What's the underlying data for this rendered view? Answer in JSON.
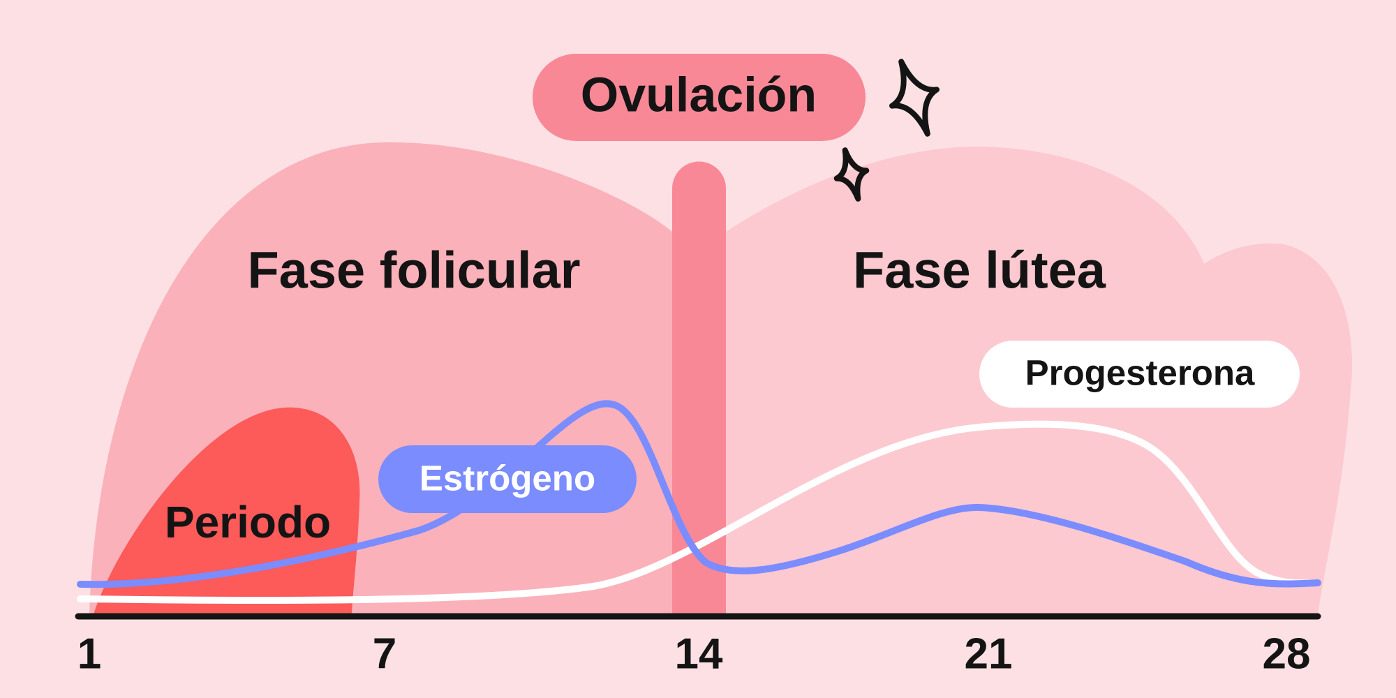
{
  "ovulation_label": "Ovulación",
  "phases": {
    "follicular": "Fase folicular",
    "luteal": "Fase lútea"
  },
  "period_label": "Periodo",
  "hormones": {
    "estrogen": "Estrógeno",
    "progesterone": "Progesterona"
  },
  "day_labels": [
    "1",
    "7",
    "14",
    "21",
    "28"
  ]
}
